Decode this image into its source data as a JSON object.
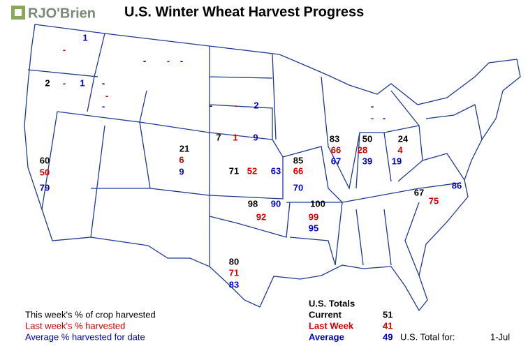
{
  "header": {
    "logo": "RJO'Brien",
    "title": "U.S. Winter Wheat Harvest Progress"
  },
  "states": [
    {
      "current": null,
      "last_week": "-",
      "average": 1
    },
    {
      "current": 2,
      "last_week": "-",
      "average": 1
    },
    {
      "current": "-",
      "last_week": "-",
      "average": "-"
    },
    {
      "current": "-",
      "last_week": "-",
      "average": "-"
    },
    {
      "current": "-",
      "last_week": "-",
      "average": 2
    },
    {
      "current": 7,
      "last_week": 1,
      "average": 9
    },
    {
      "current": 21,
      "last_week": 6,
      "average": 9
    },
    {
      "current": 60,
      "last_week": 50,
      "average": 79
    },
    {
      "current": 71,
      "last_week": 52,
      "average": 63
    },
    {
      "current": 85,
      "last_week": 66,
      "average": 70
    },
    {
      "current": 83,
      "last_week": 66,
      "average": 67
    },
    {
      "current": 50,
      "last_week": 28,
      "average": 39
    },
    {
      "current": 24,
      "last_week": 4,
      "average": 19
    },
    {
      "current": "-",
      "last_week": "-",
      "average": "-"
    },
    {
      "current": 98,
      "last_week": 92,
      "average": 90
    },
    {
      "current": 100,
      "last_week": 99,
      "average": 95
    },
    {
      "current": 67,
      "last_week": 75,
      "average": 86
    },
    {
      "current": 80,
      "last_week": 71,
      "average": 83
    }
  ],
  "legend": {
    "current": "This week's % of crop harvested",
    "last_week": "Last week's % harvested",
    "average": "Average % harvested for date"
  },
  "totals": {
    "title": "U.S. Totals",
    "rows": [
      {
        "label": "Current",
        "value": 51
      },
      {
        "label": "Last Week",
        "value": 41
      },
      {
        "label": "Average",
        "value": 49
      }
    ],
    "total_for_label": "U.S. Total for:",
    "date": "1-Jul"
  }
}
